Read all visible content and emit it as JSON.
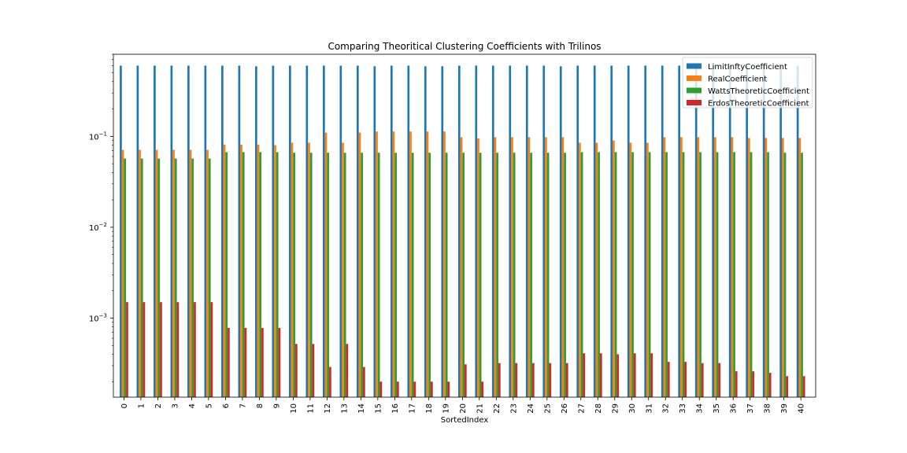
{
  "chart_data": {
    "type": "bar",
    "title": "Comparing Theoritical Clustering Coefficients with Trilinos",
    "xlabel": "SortedIndex",
    "ylabel": "",
    "yscale": "log",
    "ylim": [
      0.000135,
      0.8
    ],
    "yticks": [
      {
        "value": 0.1,
        "base": "10",
        "exp": "−1"
      },
      {
        "value": 0.01,
        "base": "10",
        "exp": "−2"
      },
      {
        "value": 0.001,
        "base": "10",
        "exp": "−3"
      }
    ],
    "legend_position": "top-right",
    "grid": false,
    "categories": [
      "0",
      "1",
      "2",
      "3",
      "4",
      "5",
      "6",
      "7",
      "8",
      "9",
      "10",
      "11",
      "12",
      "13",
      "14",
      "15",
      "16",
      "17",
      "18",
      "19",
      "20",
      "21",
      "22",
      "23",
      "24",
      "25",
      "26",
      "27",
      "28",
      "29",
      "30",
      "31",
      "32",
      "33",
      "34",
      "35",
      "36",
      "37",
      "38",
      "39",
      "40"
    ],
    "series": [
      {
        "name": "LimitInftyCoefficient",
        "color": "#1f77b4",
        "values": [
          0.6,
          0.6,
          0.6,
          0.6,
          0.6,
          0.6,
          0.6,
          0.6,
          0.59,
          0.6,
          0.6,
          0.6,
          0.6,
          0.6,
          0.6,
          0.59,
          0.6,
          0.6,
          0.59,
          0.59,
          0.6,
          0.6,
          0.6,
          0.6,
          0.6,
          0.6,
          0.59,
          0.6,
          0.6,
          0.6,
          0.6,
          0.6,
          0.6,
          0.6,
          0.6,
          0.6,
          0.6,
          0.6,
          0.6,
          0.6,
          0.6
        ]
      },
      {
        "name": "RealCoefficient",
        "color": "#ff7f0e",
        "values": [
          0.071,
          0.071,
          0.071,
          0.071,
          0.071,
          0.071,
          0.081,
          0.081,
          0.081,
          0.08,
          0.085,
          0.085,
          0.11,
          0.085,
          0.11,
          0.113,
          0.113,
          0.113,
          0.113,
          0.113,
          0.098,
          0.095,
          0.098,
          0.098,
          0.098,
          0.098,
          0.098,
          0.085,
          0.085,
          0.09,
          0.085,
          0.085,
          0.098,
          0.098,
          0.098,
          0.098,
          0.098,
          0.096,
          0.096,
          0.096,
          0.096
        ]
      },
      {
        "name": "WattsTheoreticCoefficient",
        "color": "#2ca02c",
        "values": [
          0.057,
          0.057,
          0.057,
          0.057,
          0.057,
          0.057,
          0.067,
          0.067,
          0.067,
          0.067,
          0.066,
          0.066,
          0.066,
          0.066,
          0.066,
          0.066,
          0.066,
          0.066,
          0.066,
          0.066,
          0.066,
          0.066,
          0.066,
          0.066,
          0.066,
          0.066,
          0.066,
          0.067,
          0.067,
          0.067,
          0.067,
          0.067,
          0.067,
          0.067,
          0.067,
          0.067,
          0.067,
          0.067,
          0.067,
          0.066,
          0.066
        ]
      },
      {
        "name": "ErdosTheoreticCoefficient",
        "color": "#d62728",
        "values": [
          0.0015,
          0.0015,
          0.0015,
          0.0015,
          0.0015,
          0.0015,
          0.00078,
          0.00078,
          0.00078,
          0.00078,
          0.00052,
          0.00052,
          0.00029,
          0.00052,
          0.00029,
          0.0002,
          0.0002,
          0.0002,
          0.0002,
          0.0002,
          0.00031,
          0.0002,
          0.00032,
          0.00032,
          0.00032,
          0.00032,
          0.00032,
          0.00041,
          0.00041,
          0.0004,
          0.00041,
          0.00041,
          0.00033,
          0.00033,
          0.00032,
          0.00032,
          0.00026,
          0.00026,
          0.00025,
          0.00023,
          0.00023
        ]
      }
    ]
  }
}
